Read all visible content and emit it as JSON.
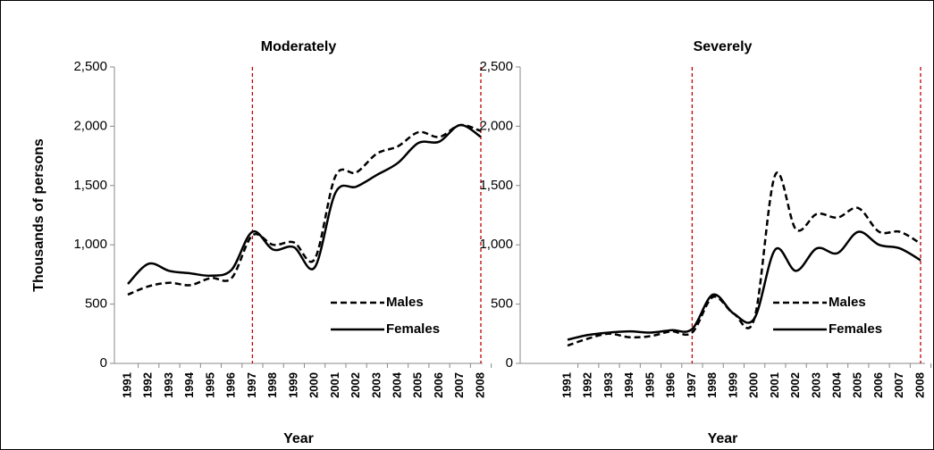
{
  "chart_data": [
    {
      "type": "line",
      "title": "Moderately",
      "x_label": "Year",
      "y_label": "Thousands of persons",
      "categories": [
        "1991",
        "1992",
        "1993",
        "1994",
        "1995",
        "1996",
        "1997",
        "1998",
        "1999",
        "2000",
        "2001",
        "2002",
        "2003",
        "2004",
        "2005",
        "2006",
        "2007",
        "2008"
      ],
      "series": [
        {
          "name": "Males",
          "color": "#000000",
          "dash": true,
          "values": [
            580,
            650,
            680,
            660,
            720,
            720,
            1080,
            1000,
            1020,
            880,
            1580,
            1610,
            1770,
            1830,
            1950,
            1910,
            2010,
            1960
          ]
        },
        {
          "name": "Females",
          "color": "#000000",
          "dash": false,
          "values": [
            670,
            840,
            780,
            760,
            740,
            790,
            1110,
            960,
            980,
            810,
            1440,
            1490,
            1590,
            1690,
            1860,
            1870,
            2010,
            1910
          ]
        }
      ],
      "vlines": [
        "1997",
        "2008"
      ],
      "vline_color": "#c00000",
      "ylim": [
        0,
        2500
      ],
      "yticks": [
        0,
        500,
        {
          "value": 1000,
          "label": "1,000"
        },
        {
          "value": 1500,
          "label": "1,500"
        },
        {
          "value": 2000,
          "label": "2,000"
        },
        {
          "value": 2500,
          "label": "2,500"
        }
      ],
      "legend": "lower right"
    },
    {
      "type": "line",
      "title": "Severely",
      "x_label": "Year",
      "categories": [
        "1991",
        "1992",
        "1993",
        "1994",
        "1995",
        "1996",
        "1997",
        "1998",
        "1999",
        "2000",
        "2001",
        "2002",
        "2003",
        "2004",
        "2005",
        "2006",
        "2007",
        "2008"
      ],
      "series": [
        {
          "name": "Males",
          "color": "#000000",
          "dash": true,
          "values": [
            150,
            210,
            250,
            220,
            230,
            270,
            260,
            560,
            420,
            380,
            1590,
            1130,
            1260,
            1230,
            1310,
            1110,
            1110,
            1010
          ]
        },
        {
          "name": "Females",
          "color": "#000000",
          "dash": false,
          "values": [
            200,
            240,
            260,
            270,
            260,
            280,
            290,
            580,
            420,
            380,
            960,
            780,
            970,
            930,
            1110,
            1000,
            970,
            870
          ]
        }
      ],
      "vlines": [
        "1997",
        "2008"
      ],
      "vline_color": "#c00000",
      "ylim": [
        0,
        2500
      ],
      "yticks": [
        0,
        500,
        {
          "value": 1000,
          "label": "1,000"
        },
        {
          "value": 1500,
          "label": "1,500"
        },
        {
          "value": 2000,
          "label": "2,000"
        },
        {
          "value": 2500,
          "label": "2,500"
        }
      ],
      "legend": "lower right"
    }
  ]
}
